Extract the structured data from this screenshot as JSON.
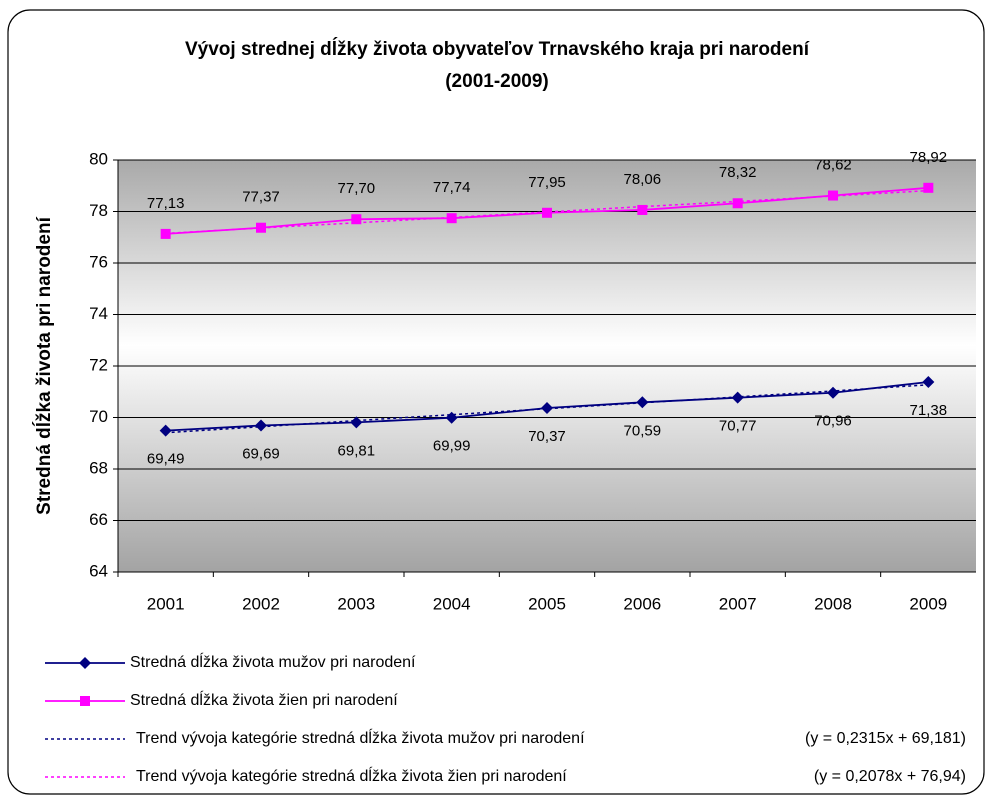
{
  "chart_data": {
    "type": "line",
    "title": "Vývoj strednej dĺžky života obyvateľov Trnavského kraja pri narodení",
    "subtitle": "(2001-2009)",
    "y_label": "Stredná dĺžka života pri narodení",
    "categories": [
      "2001",
      "2002",
      "2003",
      "2004",
      "2005",
      "2006",
      "2007",
      "2008",
      "2009"
    ],
    "ylim": [
      64,
      80
    ],
    "yticks": [
      64,
      66,
      68,
      70,
      72,
      74,
      76,
      78,
      80
    ],
    "grid": true,
    "legend": "bottom",
    "series": [
      {
        "name": "Stredná dĺžka života mužov pri narodení",
        "color": "#000080",
        "marker": "diamond",
        "label_position": "below",
        "values": [
          69.49,
          69.69,
          69.81,
          69.99,
          70.37,
          70.59,
          70.77,
          70.96,
          71.38
        ],
        "value_labels": [
          "69,49",
          "69,69",
          "69,81",
          "69,99",
          "70,37",
          "70,59",
          "70,77",
          "70,96",
          "71,38"
        ]
      },
      {
        "name": "Stredná dĺžka života žien pri narodení",
        "color": "#ff00ff",
        "marker": "square",
        "label_position": "above",
        "values": [
          77.13,
          77.37,
          77.7,
          77.74,
          77.95,
          78.06,
          78.32,
          78.62,
          78.92
        ],
        "value_labels": [
          "77,13",
          "77,37",
          "77,70",
          "77,74",
          "77,95",
          "78,06",
          "78,32",
          "78,62",
          "78,92"
        ]
      },
      {
        "name": "Trend vývoja kategórie stredná dĺžka života mužov pri narodení",
        "equation": "(y = 0,2315x + 69,181)",
        "color": "#000080",
        "style": "dotted",
        "values": [
          69.41,
          69.64,
          69.88,
          70.11,
          70.34,
          70.57,
          70.8,
          71.03,
          71.27
        ]
      },
      {
        "name": "Trend vývoja kategórie stredná dĺžka života žien pri narodení",
        "equation": "(y = 0,2078x + 76,94)",
        "color": "#ff00ff",
        "style": "dotted",
        "values": [
          77.15,
          77.36,
          77.56,
          77.77,
          77.98,
          78.19,
          78.39,
          78.6,
          78.81
        ]
      }
    ]
  }
}
